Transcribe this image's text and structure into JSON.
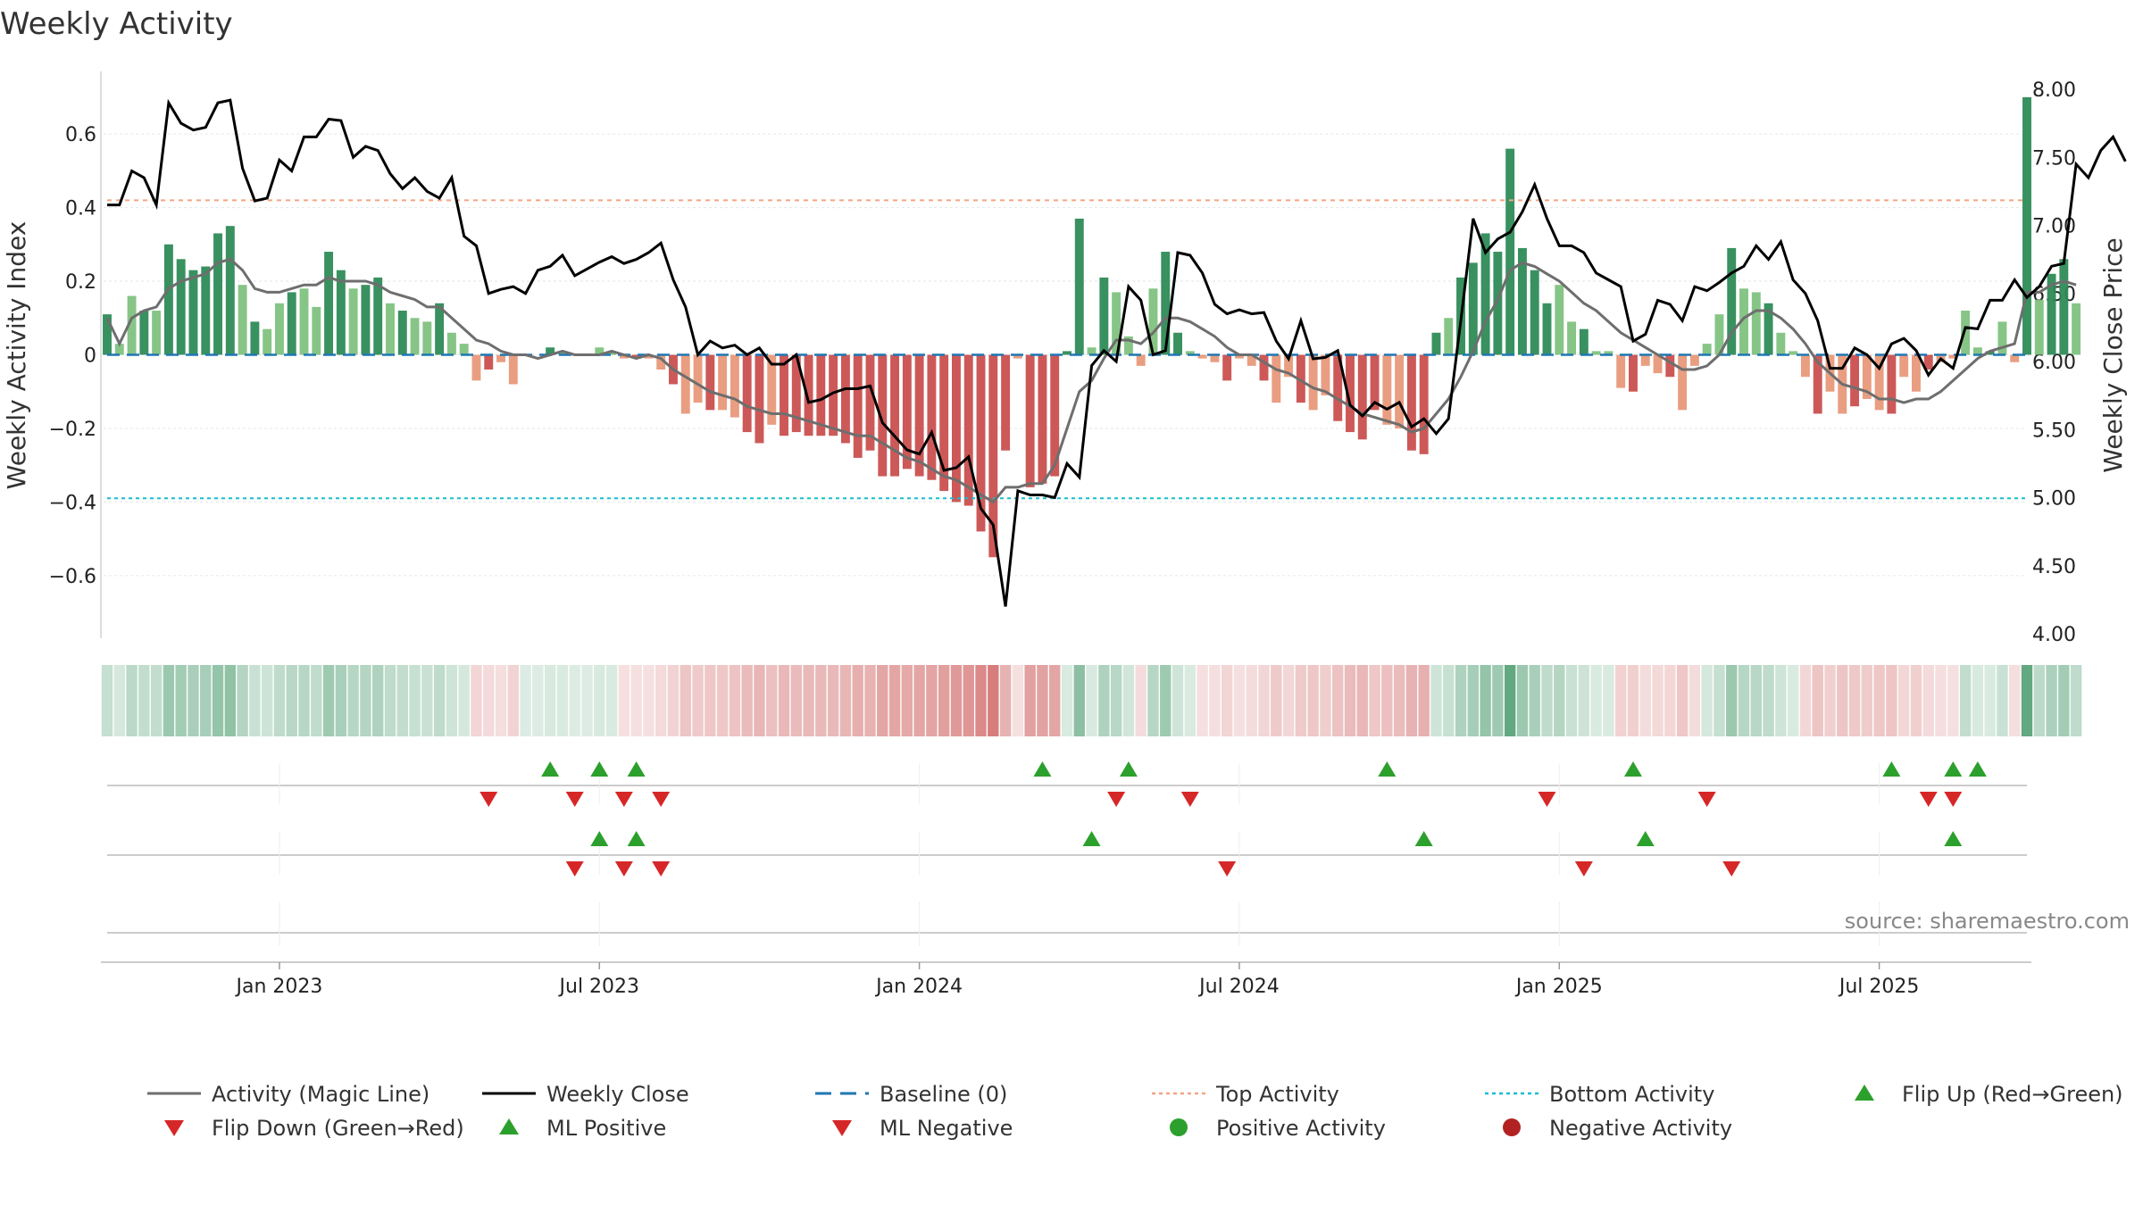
{
  "colors": {
    "green_dark": "#2e8b57",
    "green_light": "#7fc27f",
    "red_dark": "#c9504f",
    "red_light": "#e8997a",
    "magic_line": "#6e6e6e",
    "close_line": "#000000",
    "baseline": "#1f77b4",
    "top_activity": "#f4a582",
    "bottom_activity": "#17becf",
    "marker_up": "#2ca02c",
    "marker_down": "#d62728",
    "grid": "#e6e6e6",
    "axis": "#cccccc"
  },
  "chart_data": {
    "type": "bar+line",
    "title": "Weekly Activity",
    "ylabel_left": "Weekly Activity Index",
    "ylabel_right": "Weekly Close Price",
    "ylim_left": [
      -0.77,
      0.77
    ],
    "ylim_right": [
      4.0,
      8.0
    ],
    "left_ticks": [
      "0.6",
      "0.4",
      "0.2",
      "0",
      "−0.2",
      "−0.4",
      "−0.6"
    ],
    "left_tick_values": [
      0.6,
      0.4,
      0.2,
      0,
      -0.2,
      -0.4,
      -0.6
    ],
    "right_ticks": [
      "8.00",
      "7.50",
      "7.00",
      "6.50",
      "6.00",
      "5.50",
      "5.00",
      "4.50",
      "4.00"
    ],
    "right_tick_values": [
      8.0,
      7.5,
      7.0,
      6.5,
      6.0,
      5.5,
      5.0,
      4.5,
      4.0
    ],
    "x_range_weeks": [
      0,
      156
    ],
    "x_ticks": [
      {
        "label": "Jan 2023",
        "week": 14
      },
      {
        "label": "Jul 2023",
        "week": 40
      },
      {
        "label": "Jan 2024",
        "week": 66
      },
      {
        "label": "Jul 2024",
        "week": 92
      },
      {
        "label": "Jan 2025",
        "week": 118
      },
      {
        "label": "Jul 2025",
        "week": 144
      }
    ],
    "top_activity": 0.42,
    "bottom_activity": -0.39,
    "activity_bars": [
      0.11,
      0.03,
      0.16,
      0.12,
      0.12,
      0.3,
      0.26,
      0.23,
      0.24,
      0.33,
      0.35,
      0.19,
      0.09,
      0.07,
      0.14,
      0.17,
      0.18,
      0.13,
      0.28,
      0.23,
      0.18,
      0.19,
      0.21,
      0.14,
      0.12,
      0.1,
      0.09,
      0.14,
      0.06,
      0.03,
      -0.07,
      -0.04,
      -0.02,
      -0.08,
      0,
      0,
      0.02,
      0.01,
      0,
      0,
      0.02,
      0.01,
      -0.01,
      -0.01,
      -0.01,
      -0.04,
      -0.08,
      -0.16,
      -0.13,
      -0.15,
      -0.15,
      -0.17,
      -0.21,
      -0.24,
      -0.19,
      -0.22,
      -0.21,
      -0.22,
      -0.22,
      -0.22,
      -0.24,
      -0.28,
      -0.26,
      -0.33,
      -0.33,
      -0.31,
      -0.33,
      -0.34,
      -0.37,
      -0.4,
      -0.41,
      -0.48,
      -0.55,
      -0.26,
      -0.01,
      -0.36,
      -0.35,
      -0.33,
      0.01,
      0.37,
      0.02,
      0.21,
      0.17,
      0.05,
      -0.03,
      0.18,
      0.28,
      0.06,
      0.01,
      -0.01,
      -0.02,
      -0.07,
      -0.01,
      -0.03,
      -0.07,
      -0.13,
      -0.06,
      -0.13,
      -0.15,
      -0.11,
      -0.18,
      -0.21,
      -0.23,
      -0.15,
      -0.19,
      -0.2,
      -0.26,
      -0.27,
      0.06,
      0.1,
      0.21,
      0.25,
      0.33,
      0.28,
      0.56,
      0.29,
      0.23,
      0.14,
      0.19,
      0.09,
      0.07,
      0.01,
      0.01,
      -0.09,
      -0.1,
      -0.03,
      -0.05,
      -0.06,
      -0.15,
      -0.03,
      0.03,
      0.11,
      0.29,
      0.18,
      0.17,
      0.14,
      0.06,
      0.01,
      -0.06,
      -0.16,
      -0.1,
      -0.16,
      -0.14,
      -0.12,
      -0.15,
      -0.16,
      -0.06,
      -0.1,
      -0.04,
      -0.02,
      -0.01,
      0.12,
      0.02,
      0.01,
      0.09,
      -0.02,
      0.7,
      0.15,
      0.22,
      0.26,
      0.14
    ],
    "magic_line": [
      0.1,
      0.03,
      0.1,
      0.12,
      0.13,
      0.18,
      0.2,
      0.21,
      0.22,
      0.25,
      0.26,
      0.23,
      0.18,
      0.17,
      0.17,
      0.18,
      0.19,
      0.19,
      0.21,
      0.2,
      0.2,
      0.2,
      0.19,
      0.17,
      0.16,
      0.15,
      0.13,
      0.13,
      0.1,
      0.07,
      0.04,
      0.03,
      0.01,
      0,
      0,
      -0.01,
      0,
      0.01,
      0,
      0,
      0,
      0.01,
      0,
      -0.01,
      0,
      -0.01,
      -0.04,
      -0.06,
      -0.08,
      -0.1,
      -0.11,
      -0.12,
      -0.14,
      -0.15,
      -0.16,
      -0.16,
      -0.17,
      -0.18,
      -0.19,
      -0.2,
      -0.21,
      -0.22,
      -0.22,
      -0.24,
      -0.26,
      -0.28,
      -0.29,
      -0.31,
      -0.33,
      -0.34,
      -0.36,
      -0.38,
      -0.4,
      -0.36,
      -0.36,
      -0.35,
      -0.35,
      -0.3,
      -0.2,
      -0.1,
      -0.07,
      -0.01,
      0.04,
      0.04,
      0.03,
      0.06,
      0.1,
      0.1,
      0.09,
      0.07,
      0.05,
      0.02,
      0,
      0,
      -0.02,
      -0.04,
      -0.05,
      -0.07,
      -0.09,
      -0.1,
      -0.12,
      -0.14,
      -0.16,
      -0.17,
      -0.18,
      -0.19,
      -0.21,
      -0.2,
      -0.16,
      -0.12,
      -0.06,
      0.01,
      0.09,
      0.15,
      0.23,
      0.25,
      0.24,
      0.22,
      0.2,
      0.17,
      0.14,
      0.12,
      0.09,
      0.06,
      0.04,
      0.02,
      0,
      -0.02,
      -0.04,
      -0.04,
      -0.03,
      0,
      0.06,
      0.1,
      0.12,
      0.12,
      0.1,
      0.07,
      0.03,
      -0.02,
      -0.05,
      -0.08,
      -0.09,
      -0.1,
      -0.12,
      -0.12,
      -0.13,
      -0.12,
      -0.12,
      -0.1,
      -0.07,
      -0.04,
      -0.01,
      0.01,
      0.02,
      0.03,
      0.17,
      0.17,
      0.19,
      0.2,
      0.19
    ],
    "weekly_close": [
      7.15,
      7.15,
      7.4,
      7.35,
      7.15,
      7.9,
      7.75,
      7.7,
      7.72,
      7.9,
      7.92,
      7.42,
      7.18,
      7.2,
      7.48,
      7.4,
      7.65,
      7.65,
      7.78,
      7.77,
      7.5,
      7.58,
      7.55,
      7.38,
      7.27,
      7.35,
      7.25,
      7.2,
      7.35,
      6.92,
      6.85,
      6.5,
      6.53,
      6.55,
      6.5,
      6.67,
      6.7,
      6.78,
      6.63,
      6.68,
      6.73,
      6.77,
      6.72,
      6.75,
      6.8,
      6.87,
      6.6,
      6.4,
      6.05,
      6.15,
      6.1,
      6.12,
      6.05,
      6.1,
      5.98,
      5.98,
      6.05,
      5.7,
      5.72,
      5.77,
      5.8,
      5.8,
      5.82,
      5.55,
      5.45,
      5.35,
      5.32,
      5.48,
      5.2,
      5.22,
      5.3,
      4.92,
      4.8,
      4.2,
      5.05,
      5.02,
      5.02,
      5.0,
      5.25,
      5.15,
      5.97,
      6.08,
      6.0,
      6.55,
      6.45,
      6.05,
      6.08,
      6.8,
      6.78,
      6.65,
      6.42,
      6.35,
      6.38,
      6.35,
      6.36,
      6.15,
      6.02,
      6.3,
      6.02,
      6.03,
      6.08,
      5.68,
      5.6,
      5.7,
      5.65,
      5.7,
      5.52,
      5.58,
      5.47,
      5.58,
      6.3,
      7.05,
      6.8,
      6.9,
      6.95,
      7.1,
      7.3,
      7.05,
      6.85,
      6.85,
      6.8,
      6.65,
      6.6,
      6.55,
      6.15,
      6.2,
      6.45,
      6.42,
      6.3,
      6.55,
      6.52,
      6.58,
      6.65,
      6.7,
      6.85,
      6.75,
      6.88,
      6.6,
      6.5,
      6.3,
      5.95,
      5.95,
      6.1,
      6.05,
      5.95,
      6.13,
      6.17,
      6.08,
      5.9,
      6.02,
      5.95,
      6.25,
      6.24,
      6.45,
      6.45,
      6.6,
      6.47,
      6.55,
      6.7,
      6.72,
      7.45,
      7.35,
      7.55,
      7.65,
      7.47
    ],
    "flip_up": [
      36,
      40,
      43,
      76,
      83,
      104,
      124,
      145,
      150,
      152
    ],
    "flip_down": [
      31,
      38,
      42,
      45,
      82,
      88,
      117,
      130,
      148,
      150
    ],
    "ml_positive": [
      40,
      43,
      80,
      107,
      125,
      150
    ],
    "ml_negative": [
      38,
      42,
      45,
      91,
      120,
      132
    ]
  },
  "source": "source: sharemaestro.com",
  "legend": [
    {
      "key": "magic",
      "label": "Activity (Magic Line)"
    },
    {
      "key": "close",
      "label": "Weekly Close"
    },
    {
      "key": "baseline",
      "label": "Baseline (0)"
    },
    {
      "key": "top",
      "label": "Top Activity"
    },
    {
      "key": "bottom",
      "label": "Bottom Activity"
    },
    {
      "key": "flip_up",
      "label": "Flip Up (Red→Green)"
    },
    {
      "key": "flip_down",
      "label": "Flip Down (Green→Red)"
    },
    {
      "key": "ml_pos",
      "label": "ML Positive"
    },
    {
      "key": "ml_neg",
      "label": "ML Negative"
    },
    {
      "key": "pos_act",
      "label": "Positive Activity"
    },
    {
      "key": "neg_act",
      "label": "Negative Activity"
    }
  ]
}
